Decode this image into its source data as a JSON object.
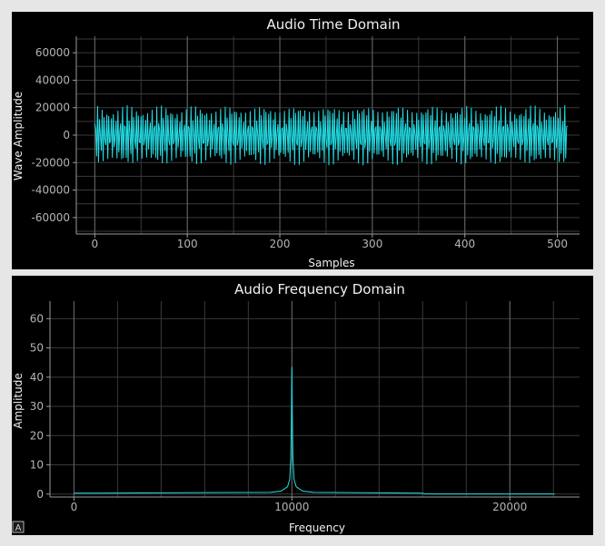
{
  "colors": {
    "window_bg": "#e6e6e6",
    "plot_bg": "#000000",
    "trace": "#22e0e8",
    "text": "#f0f0f0",
    "tick_text": "#b4b4b4",
    "axis": "#9a9a9a",
    "grid": "#3a3a3a",
    "grid_major": "#666666"
  },
  "auto_range_button": {
    "label": "A"
  },
  "chart_data": [
    {
      "type": "line",
      "title": "Audio Time Domain",
      "xlabel": "Samples",
      "ylabel": "Wave Amplitude",
      "xlim": [
        -20,
        524
      ],
      "ylim": [
        -72000,
        72000
      ],
      "x_ticks": [
        0,
        100,
        200,
        300,
        400,
        500
      ],
      "x_tick_labels": [
        "0",
        "100",
        "200",
        "300",
        "400",
        "500"
      ],
      "y_ticks": [
        60000,
        40000,
        20000,
        0,
        -20000,
        -40000,
        -60000
      ],
      "y_tick_labels": [
        "60000",
        "40000",
        "20000",
        "0",
        "-20000",
        "-40000",
        "-60000"
      ],
      "grid": true,
      "series": [
        {
          "x_start": 0,
          "x_end": 511,
          "n_points": 512,
          "min": -22000,
          "max": 22000,
          "description_values": "oscillating waveform, amplitude about ±21000 across all samples"
        }
      ]
    },
    {
      "type": "line",
      "title": "Audio Frequency Domain",
      "xlabel": "Frequency",
      "ylabel": "Amplitude",
      "xlim": [
        -1100,
        23200
      ],
      "ylim": [
        -1,
        66
      ],
      "x_ticks": [
        0,
        10000,
        20000
      ],
      "x_tick_labels": [
        "0",
        "10000",
        "20000"
      ],
      "y_ticks": [
        60,
        50,
        40,
        30,
        20,
        10,
        0
      ],
      "y_tick_labels": [
        "60",
        "50",
        "40",
        "30",
        "20",
        "10",
        "0"
      ],
      "grid": true,
      "series": [
        {
          "x": [
            0,
            9000,
            9500,
            9800,
            9900,
            9950,
            9980,
            10000,
            10020,
            10050,
            10100,
            10200,
            10500,
            11000,
            16000,
            16100,
            22050
          ],
          "y": [
            0.3,
            0.6,
            1.0,
            2.5,
            5.0,
            12.0,
            27.0,
            43.5,
            27.0,
            12.0,
            5.0,
            2.5,
            1.0,
            0.6,
            0.3,
            0.05,
            0.05
          ]
        }
      ]
    }
  ]
}
